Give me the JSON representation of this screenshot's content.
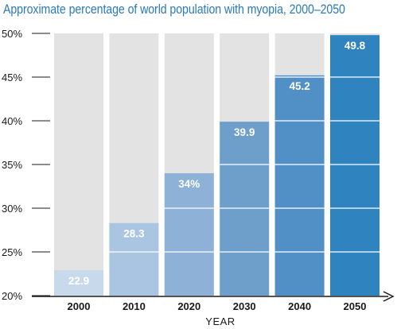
{
  "chart_data": {
    "type": "bar",
    "title": "Approximate percentage of world population with myopia, 2000–2050",
    "xlabel": "YEAR",
    "ylabel": "",
    "categories": [
      "2000",
      "2010",
      "2020",
      "2030",
      "2040",
      "2050"
    ],
    "values": [
      22.9,
      28.3,
      34,
      39.9,
      45.2,
      49.8
    ],
    "value_labels": [
      "22.9",
      "28.3",
      "34%",
      "39.9",
      "45.2",
      "49.8"
    ],
    "ylim": [
      20,
      50
    ],
    "y_ticks": [
      20,
      25,
      30,
      35,
      40,
      45,
      50
    ],
    "y_tick_labels": [
      "20%",
      "25%",
      "30%",
      "35%",
      "40%",
      "45%",
      "50%"
    ],
    "grid": false,
    "legend": "none",
    "background_column_color": "#e3e3e3",
    "bar_colors": [
      "#c7d9ea",
      "#a9c5e1",
      "#8eb2d7",
      "#6e9fcb",
      "#5090c7",
      "#2f84c0"
    ],
    "title_color": "#2a7ab9"
  }
}
